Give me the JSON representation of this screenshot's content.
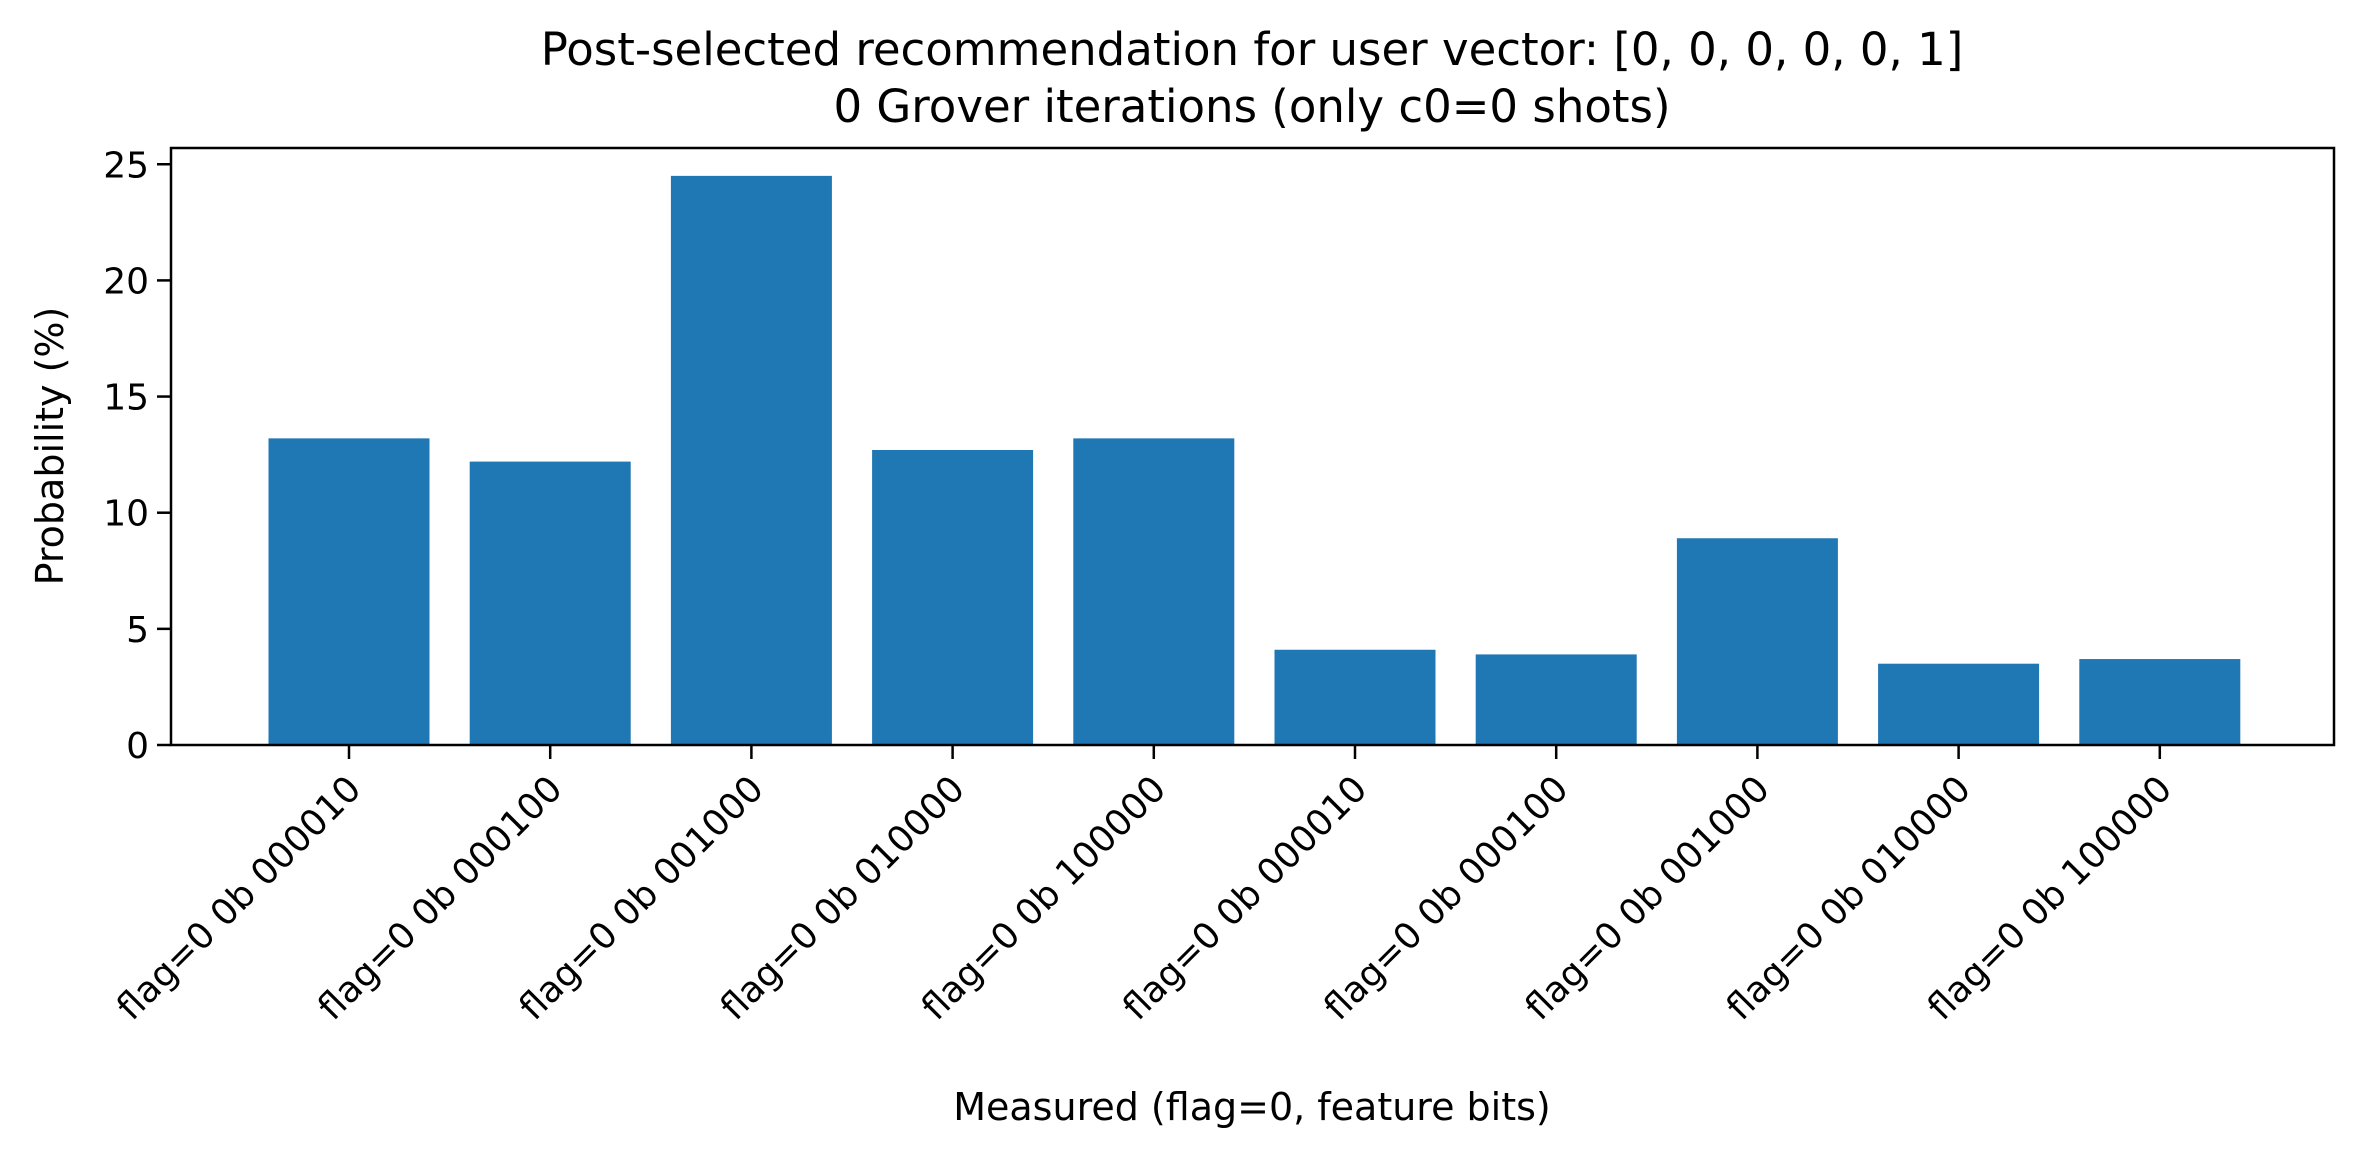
{
  "chart_data": {
    "type": "bar",
    "title": "Post-selected recommendation for user vector: [0, 0, 0, 0, 0, 1]",
    "subtitle": "0 Grover iterations  (only c0=0 shots)",
    "xlabel": "Measured (flag=0, feature bits)",
    "ylabel": "Probability (%)",
    "categories": [
      "flag=0 0b 000010",
      "flag=0 0b 000100",
      "flag=0 0b 001000",
      "flag=0 0b 010000",
      "flag=0 0b 100000",
      "flag=0 0b 000010",
      "flag=0 0b 000100",
      "flag=0 0b 001000",
      "flag=0 0b 010000",
      "flag=0 0b 100000"
    ],
    "values": [
      13.2,
      12.2,
      24.5,
      12.7,
      13.2,
      4.1,
      3.9,
      8.9,
      3.5,
      3.7
    ],
    "ylim": [
      0,
      25.7
    ],
    "yticks": [
      0,
      5,
      10,
      15,
      20,
      25
    ],
    "grid": false,
    "bar_color": "#1f77b4"
  }
}
